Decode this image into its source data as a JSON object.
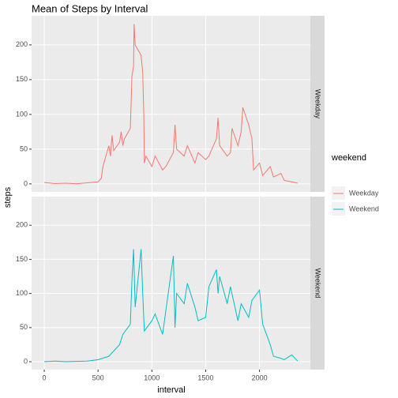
{
  "chart_data": {
    "type": "line",
    "title": "Mean of Steps by Interval",
    "x_label": "interval",
    "y_label": "steps",
    "legend_title": "weekend",
    "xlim": [
      -117.75,
      2472.75
    ],
    "xticks": [
      0,
      500,
      1000,
      1500,
      2000
    ],
    "ylim": [
      -11.5,
      241.9
    ],
    "yticks": [
      0,
      50,
      100,
      150,
      200
    ],
    "grid": true,
    "series": [
      {
        "name": "Weekday",
        "color": "#F8766D",
        "x": [
          0,
          100,
          200,
          300,
          400,
          500,
          530,
          545,
          600,
          615,
          630,
          645,
          700,
          715,
          730,
          745,
          800,
          815,
          830,
          835,
          845,
          900,
          915,
          925,
          930,
          945,
          1000,
          1030,
          1100,
          1130,
          1200,
          1215,
          1230,
          1300,
          1330,
          1400,
          1430,
          1500,
          1530,
          1600,
          1615,
          1630,
          1700,
          1730,
          1745,
          1800,
          1830,
          1845,
          1900,
          1930,
          1945,
          2000,
          2030,
          2100,
          2130,
          2200,
          2230,
          2300,
          2355
        ],
        "values": [
          2,
          0.5,
          1,
          0.2,
          1.5,
          3,
          8,
          25,
          55,
          40,
          70,
          48,
          60,
          75,
          55,
          65,
          80,
          155,
          170,
          230,
          200,
          185,
          160,
          100,
          30,
          40,
          25,
          40,
          20,
          25,
          45,
          85,
          50,
          40,
          55,
          30,
          45,
          35,
          40,
          65,
          95,
          55,
          40,
          45,
          80,
          55,
          75,
          110,
          85,
          65,
          20,
          30,
          12,
          25,
          10,
          15,
          5,
          3,
          1
        ]
      },
      {
        "name": "Weekend",
        "color": "#00BFC4",
        "x": [
          0,
          100,
          200,
          300,
          400,
          500,
          600,
          700,
          730,
          800,
          815,
          830,
          845,
          900,
          915,
          930,
          1000,
          1030,
          1100,
          1130,
          1200,
          1215,
          1230,
          1300,
          1330,
          1400,
          1430,
          1500,
          1530,
          1600,
          1615,
          1630,
          1700,
          1730,
          1800,
          1830,
          1900,
          1930,
          2000,
          2030,
          2100,
          2130,
          2200,
          2230,
          2300,
          2355
        ],
        "values": [
          0,
          1,
          0,
          0.5,
          1,
          3,
          8,
          25,
          40,
          55,
          120,
          165,
          80,
          165,
          100,
          45,
          60,
          70,
          40,
          75,
          155,
          50,
          100,
          85,
          115,
          80,
          60,
          65,
          110,
          135,
          100,
          125,
          85,
          110,
          60,
          85,
          65,
          90,
          105,
          55,
          25,
          8,
          5,
          3,
          10,
          1
        ]
      }
    ]
  }
}
